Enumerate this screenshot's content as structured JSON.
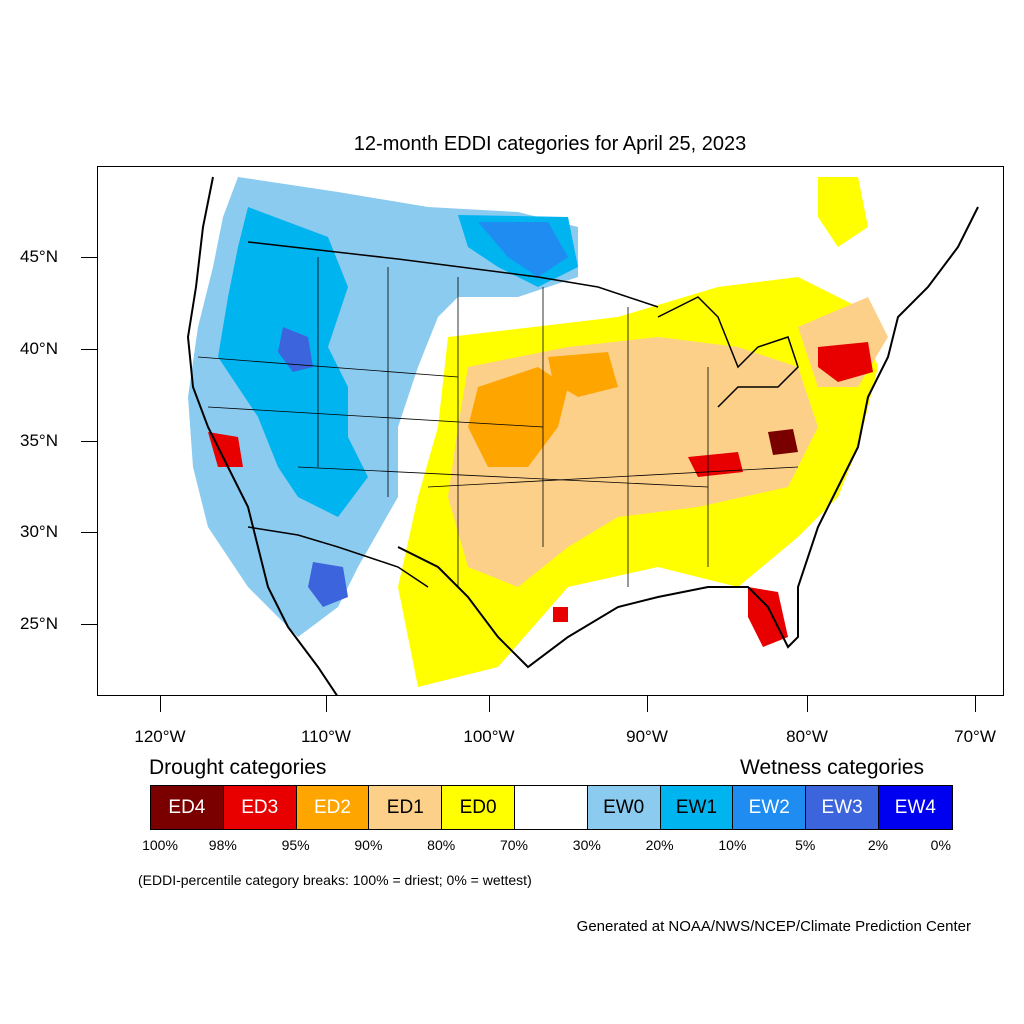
{
  "title": "12-month EDDI categories for April 25, 2023",
  "lat_labels": [
    "45°N",
    "40°N",
    "35°N",
    "30°N",
    "25°N"
  ],
  "lon_labels": [
    "120°W",
    "110°W",
    "100°W",
    "90°W",
    "80°W",
    "70°W"
  ],
  "drought_heading": "Drought categories",
  "wetness_heading": "Wetness categories",
  "legend": [
    {
      "label": "ED4",
      "color": "#7a0000",
      "text_color": "#ffffff"
    },
    {
      "label": "ED3",
      "color": "#e80000",
      "text_color": "#ffffff"
    },
    {
      "label": "ED2",
      "color": "#ffa500",
      "text_color": "#ffffff"
    },
    {
      "label": "ED1",
      "color": "#fdd08a",
      "text_color": "#000000"
    },
    {
      "label": "ED0",
      "color": "#ffff00",
      "text_color": "#000000"
    },
    {
      "label": "",
      "color": "#ffffff",
      "text_color": "#000000"
    },
    {
      "label": "EW0",
      "color": "#8ccbf0",
      "text_color": "#000000"
    },
    {
      "label": "EW1",
      "color": "#00b4f0",
      "text_color": "#000000"
    },
    {
      "label": "EW2",
      "color": "#1e8cf0",
      "text_color": "#ffffff"
    },
    {
      "label": "EW3",
      "color": "#3c64dc",
      "text_color": "#ffffff"
    },
    {
      "label": "EW4",
      "color": "#0000f0",
      "text_color": "#ffffff"
    }
  ],
  "percent_breaks": [
    "100%",
    "98%",
    "95%",
    "90%",
    "80%",
    "70%",
    "30%",
    "20%",
    "10%",
    "5%",
    "2%",
    "0%"
  ],
  "note": "(EDDI-percentile category breaks: 100% = driest; 0% = wettest)",
  "credit": "Generated at NOAA/NWS/NCEP/Climate Prediction Center"
}
